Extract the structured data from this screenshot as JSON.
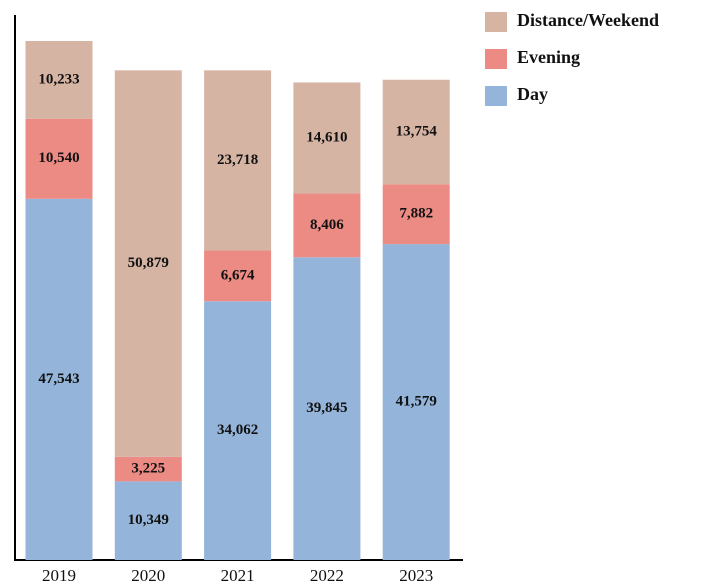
{
  "chart_data": {
    "type": "stacked_bar",
    "categories": [
      "2019",
      "2020",
      "2021",
      "2022",
      "2023"
    ],
    "series": [
      {
        "name": "Day",
        "color": "#94b4da",
        "values": [
          47543,
          10349,
          34062,
          39845,
          41579
        ],
        "value_labels": [
          "47,543",
          "10,349",
          "34,062",
          "39,845",
          "41,579"
        ]
      },
      {
        "name": "Evening",
        "color": "#ec8b84",
        "values": [
          10540,
          3225,
          6674,
          8406,
          7882
        ],
        "value_labels": [
          "10,540",
          "3,225",
          "6,674",
          "8,406",
          "7,882"
        ]
      },
      {
        "name": "Distance/Weekend",
        "color": "#d6b4a4",
        "values": [
          10233,
          50879,
          23718,
          14610,
          13754
        ],
        "value_labels": [
          "10,233",
          "50,879",
          "23,718",
          "14,610",
          "13,754"
        ]
      }
    ],
    "legend": "top-right"
  }
}
